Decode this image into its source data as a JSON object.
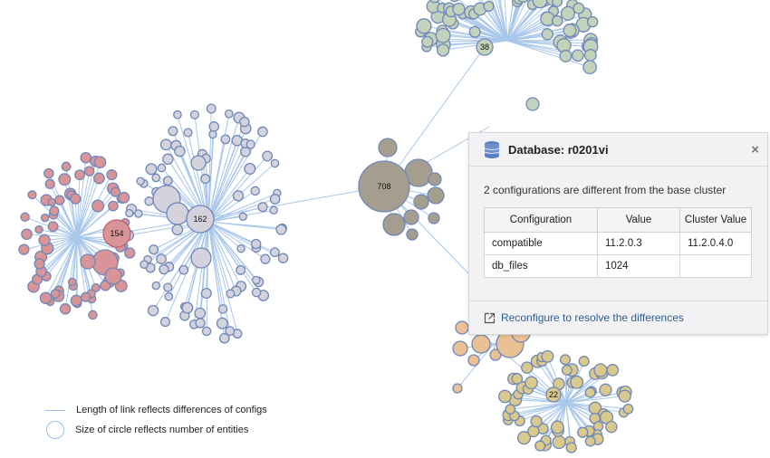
{
  "graph": {
    "hubs": [
      {
        "id": "hub-154",
        "label": "154",
        "color": "#d99498",
        "stroke": "#c06070"
      },
      {
        "id": "hub-162",
        "label": "162",
        "color": "#d4d2dc",
        "stroke": "#6f88b8"
      },
      {
        "id": "hub-708",
        "label": "708",
        "color": "#a59e8f",
        "stroke": "#6f88b8"
      },
      {
        "id": "hub-38",
        "label": "38",
        "color": "#c2d2bb",
        "stroke": "#6f88b8"
      },
      {
        "id": "hub-22",
        "label": "22",
        "color": "#d9c98c",
        "stroke": "#6f88b8"
      }
    ],
    "link_color": "#a8c6ea",
    "node_stroke": "#4f74b3",
    "orange_color": "#eac095"
  },
  "legend": {
    "link_text": "Length of link reflects differences of configs",
    "circle_text": "Size of circle reflects number of entities"
  },
  "popup": {
    "title": "Database: r0201vi",
    "summary": "2 configurations are different from the base cluster",
    "columns": [
      "Configuration",
      "Value",
      "Cluster Value"
    ],
    "rows": [
      [
        "compatible",
        "11.2.0.3",
        "11.2.0.4.0"
      ],
      [
        "db_files",
        "1024",
        ""
      ]
    ],
    "action": "Reconfigure to resolve the differences",
    "close_symbol": "×"
  }
}
